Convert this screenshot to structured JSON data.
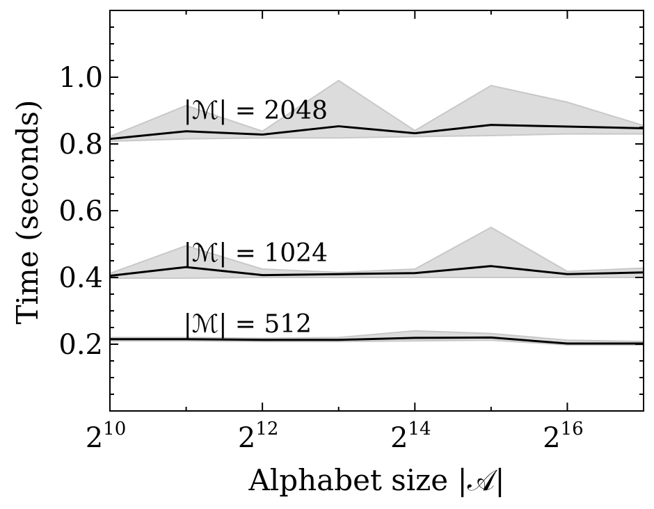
{
  "chart_data": {
    "type": "line",
    "title": "",
    "xlabel": "Alphabet size |𝒜|",
    "ylabel": "Time (seconds)",
    "x_scale": "log2",
    "x": [
      10,
      11,
      12,
      13,
      14,
      15,
      16,
      17
    ],
    "xlim": [
      10,
      17
    ],
    "ylim": [
      0.0,
      1.2
    ],
    "x_ticks": [
      {
        "value": 10,
        "base": "2",
        "exp": "10"
      },
      {
        "value": 12,
        "base": "2",
        "exp": "12"
      },
      {
        "value": 14,
        "base": "2",
        "exp": "14"
      },
      {
        "value": 16,
        "base": "2",
        "exp": "16"
      }
    ],
    "y_ticks": [
      {
        "value": 0.2,
        "label": "0.2"
      },
      {
        "value": 0.4,
        "label": "0.4"
      },
      {
        "value": 0.6,
        "label": "0.6"
      },
      {
        "value": 0.8,
        "label": "0.8"
      },
      {
        "value": 1.0,
        "label": "1.0"
      }
    ],
    "y_minor_step": 0.05,
    "grid": false,
    "line_color": "#000000",
    "band_color": "#dcdcdc",
    "band_edge_color": "#c8c8c8",
    "series": [
      {
        "name": "|ℳ| = 2048",
        "label": "|ℳ| = 2048",
        "label_at": [
          11,
          0.9
        ],
        "values": [
          0.815,
          0.838,
          0.828,
          0.853,
          0.832,
          0.857,
          0.852,
          0.847
        ],
        "upper": [
          0.822,
          0.915,
          0.838,
          0.99,
          0.84,
          0.975,
          0.925,
          0.855
        ],
        "lower": [
          0.808,
          0.815,
          0.818,
          0.818,
          0.822,
          0.825,
          0.83,
          0.83
        ]
      },
      {
        "name": "|ℳ| = 1024",
        "label": "|ℳ| = 1024",
        "label_at": [
          11,
          0.473
        ],
        "values": [
          0.405,
          0.431,
          0.407,
          0.41,
          0.413,
          0.434,
          0.41,
          0.415
        ],
        "upper": [
          0.412,
          0.495,
          0.425,
          0.415,
          0.425,
          0.55,
          0.418,
          0.428
        ],
        "lower": [
          0.398,
          0.398,
          0.4,
          0.4,
          0.4,
          0.4,
          0.4,
          0.4
        ]
      },
      {
        "name": "|ℳ| = 512",
        "label": "|ℳ| = 512",
        "label_at": [
          11,
          0.26
        ],
        "values": [
          0.215,
          0.215,
          0.213,
          0.213,
          0.219,
          0.22,
          0.202,
          0.202
        ],
        "upper": [
          0.22,
          0.22,
          0.218,
          0.22,
          0.24,
          0.232,
          0.212,
          0.208
        ],
        "lower": [
          0.21,
          0.21,
          0.208,
          0.208,
          0.21,
          0.212,
          0.198,
          0.198
        ]
      }
    ]
  }
}
